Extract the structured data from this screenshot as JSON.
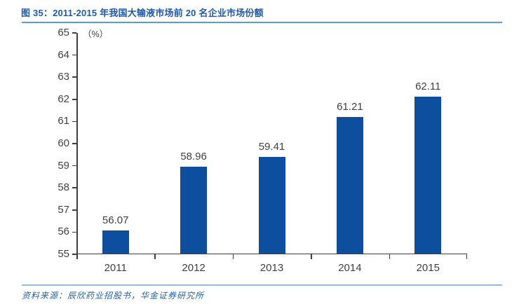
{
  "header": {
    "title": "图 35：2011-2015 年我国大输液市场前 20 名企业市场份额",
    "title_color": "#1F5AA8",
    "rule_color": "#5B9BD5"
  },
  "chart_data": {
    "type": "bar",
    "title": "2011-2015 年我国大输液市场前 20 名企业市场份额",
    "unit_label": "（%）",
    "categories": [
      "2011",
      "2012",
      "2013",
      "2014",
      "2015"
    ],
    "values": [
      56.07,
      58.96,
      59.41,
      61.21,
      62.11
    ],
    "value_labels": [
      "56.07",
      "58.96",
      "59.41",
      "61.21",
      "62.11"
    ],
    "xlabel": "",
    "ylabel": "%",
    "ylim": [
      55,
      65
    ],
    "ytick_step": 1,
    "grid": false,
    "legend": "none",
    "bar_color": "#0D4F9E",
    "axis_color": "#3F3F3F",
    "label_color": "#404040"
  },
  "footer": {
    "source": "资料来源：辰欣药业招股书，华金证券研究所",
    "source_color": "#28619E",
    "rule_color": "#93BBDF"
  }
}
